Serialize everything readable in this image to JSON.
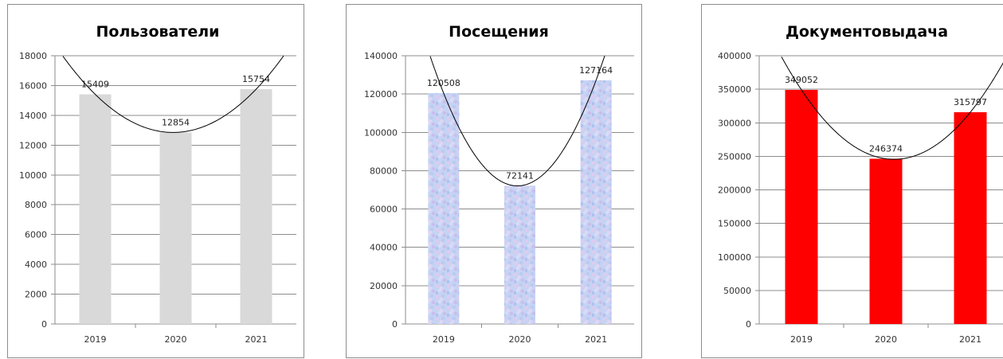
{
  "chart_data": [
    {
      "type": "bar",
      "title": "Пользователи",
      "categories": [
        "2019",
        "2020",
        "2021"
      ],
      "values": [
        15409,
        12854,
        15754
      ],
      "ylim": [
        0,
        18000
      ],
      "yticks": [
        0,
        2000,
        4000,
        6000,
        8000,
        10000,
        12000,
        14000,
        16000,
        18000
      ],
      "bar_color": "#d9d9d9",
      "bar_style": "solid",
      "trendline": "polynomial",
      "grid": true
    },
    {
      "type": "bar",
      "title": "Посещения",
      "categories": [
        "2019",
        "2020",
        "2021"
      ],
      "values": [
        120508,
        72141,
        127164
      ],
      "ylim": [
        0,
        140000
      ],
      "yticks": [
        0,
        20000,
        40000,
        60000,
        80000,
        100000,
        120000,
        140000
      ],
      "bar_color": "#c6d3f3",
      "bar_style": "textured",
      "trendline": "polynomial",
      "grid": true
    },
    {
      "type": "bar",
      "title": "Документовыдача",
      "categories": [
        "2019",
        "2020",
        "2021"
      ],
      "values": [
        349052,
        246374,
        315797
      ],
      "ylim": [
        0,
        400000
      ],
      "yticks": [
        0,
        50000,
        100000,
        150000,
        200000,
        250000,
        300000,
        350000,
        400000
      ],
      "bar_color": "#ff0000",
      "bar_style": "solid",
      "trendline": "polynomial",
      "grid": true
    }
  ]
}
